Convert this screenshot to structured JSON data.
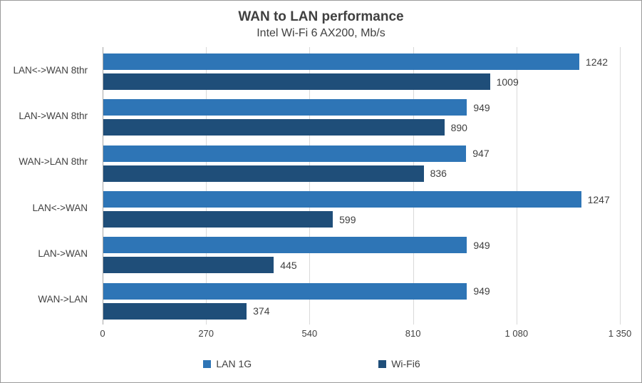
{
  "chart": {
    "title": "WAN to LAN performance",
    "subtitle": "Intel Wi-Fi 6 AX200, Mb/s",
    "colors": {
      "series_lan1g": "#2E75B6",
      "series_wifi6": "#1F4E79",
      "gridline": "#D9D9D9",
      "axis_line": "#A6A6A6",
      "text": "#404040",
      "border": "#9B9B9B"
    }
  },
  "chart_data": {
    "type": "bar",
    "orientation": "horizontal",
    "title": "WAN to LAN performance",
    "subtitle": "Intel Wi-Fi 6 AX200, Mb/s",
    "xlabel": "",
    "ylabel": "",
    "categories": [
      "LAN<->WAN 8thr",
      "LAN->WAN 8thr",
      "WAN->LAN 8thr",
      "LAN<->WAN",
      "LAN->WAN",
      "WAN->LAN"
    ],
    "series": [
      {
        "name": "LAN 1G",
        "color": "#2E75B6",
        "values": [
          1242,
          949,
          947,
          1247,
          949,
          949
        ]
      },
      {
        "name": "Wi-Fi6",
        "color": "#1F4E79",
        "values": [
          1009,
          890,
          836,
          599,
          445,
          374
        ]
      }
    ],
    "data_labels": true,
    "xlim": [
      0,
      1350
    ],
    "xticks": [
      0,
      270,
      540,
      810,
      1080,
      1350
    ],
    "xtick_labels": [
      "0",
      "270",
      "540",
      "810",
      "1 080",
      "1 350"
    ],
    "grid": true,
    "legend_position": "bottom"
  }
}
